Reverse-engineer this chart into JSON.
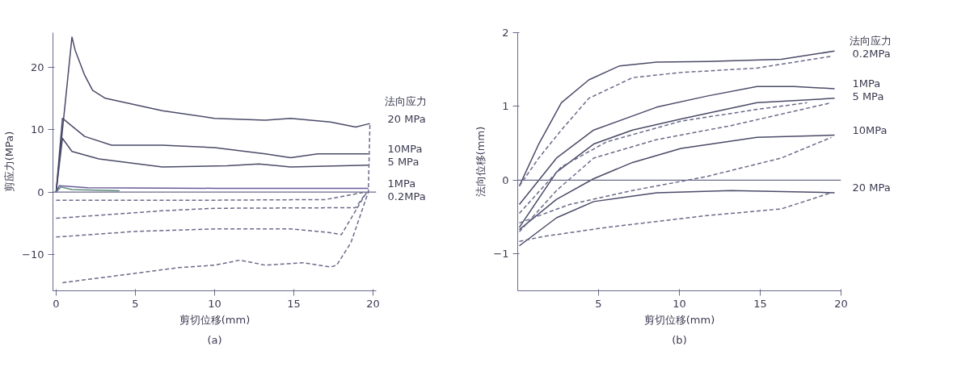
{
  "chart_data": [
    {
      "type": "line",
      "xlabel": "剪切位移(mm)",
      "ylabel": "剪应力(MPa)",
      "legend_title": "法向应力",
      "annotations": [
        "(a)"
      ],
      "legend": false,
      "grid": false,
      "marker": "none",
      "xlim": [
        -0.2,
        20.2
      ],
      "ylim": [
        -15.8,
        25.5
      ],
      "xticks": [
        0,
        5,
        10,
        15,
        20
      ],
      "yticks": [
        -10,
        0,
        10,
        20
      ],
      "ref_lines": [
        {
          "axis": "y",
          "value": 0,
          "color": "#6a6a8a"
        }
      ],
      "series": [
        {
          "name": "20 MPa",
          "color": "#4a4a68",
          "line_style": "solid",
          "x": [
            0,
            1.0,
            1.2,
            1.8,
            2.3,
            3.1,
            6.7,
            10,
            13.2,
            14.8,
            17.3,
            18.9,
            19.7,
            19.8
          ],
          "values": [
            0,
            24.8,
            22.7,
            18.7,
            16.3,
            15.0,
            13.0,
            11.8,
            11.5,
            11.8,
            11.2,
            10.4,
            10.9,
            10.9
          ]
        },
        {
          "name": "10MPa",
          "color": "#4a4a68",
          "line_style": "solid",
          "x": [
            0,
            0.4,
            1.8,
            3.5,
            6.7,
            10,
            13.2,
            14.8,
            16.5,
            19.7
          ],
          "values": [
            0,
            11.8,
            8.9,
            7.5,
            7.5,
            7.1,
            6.1,
            5.5,
            6.1,
            6.1
          ]
        },
        {
          "name": "5 MPa",
          "color": "#4a4a68",
          "line_style": "solid",
          "x": [
            0,
            0.4,
            1.0,
            2.7,
            6.7,
            10.8,
            12.8,
            14.8,
            19.7
          ],
          "values": [
            0,
            8.6,
            6.5,
            5.3,
            4.0,
            4.2,
            4.5,
            4.0,
            4.3
          ]
        },
        {
          "name": "1MPa",
          "color": "#6a5a9a",
          "line_style": "solid",
          "x": [
            0,
            0.2,
            2,
            10,
            19.7
          ],
          "values": [
            0,
            1.0,
            0.7,
            0.6,
            0.6
          ]
        },
        {
          "name": "0.2MPa",
          "color": "#5a8a7a",
          "line_style": "solid",
          "x": [
            0,
            0.3,
            1,
            4
          ],
          "values": [
            0,
            0.8,
            0.4,
            0.2
          ]
        },
        {
          "color": "#6a6a8a",
          "line_style": "dashed",
          "x": [
            0,
            10,
            17,
            19.5
          ],
          "values": [
            -1.3,
            -1.3,
            -1.2,
            0
          ]
        },
        {
          "color": "#6a6a8a",
          "line_style": "dashed",
          "x": [
            0,
            6.7,
            10,
            18.9,
            19.6
          ],
          "values": [
            -4.2,
            -3.0,
            -2.6,
            -2.5,
            0
          ]
        },
        {
          "color": "#6a6a8a",
          "line_style": "dashed",
          "x": [
            0,
            5,
            10,
            14.8,
            17.3,
            18,
            19.6
          ],
          "values": [
            -7.2,
            -6.3,
            -5.9,
            -5.9,
            -6.5,
            -6.8,
            0
          ]
        },
        {
          "color": "#6a6a8a",
          "line_style": "dashed",
          "x": [
            0.4,
            5,
            7.7,
            10,
            11.6,
            13.2,
            15.6,
            17.3,
            17.7,
            18.6,
            19.4,
            19.7,
            19.8
          ],
          "values": [
            -14.5,
            -13,
            -12.1,
            -11.7,
            -10.9,
            -11.7,
            -11.3,
            -12.0,
            -11.7,
            -8.1,
            -2.2,
            0,
            10.9
          ]
        }
      ]
    },
    {
      "type": "line",
      "xlabel": "剪切位移(mm)",
      "ylabel": "法向位移(mm)",
      "legend_title": "法向应力",
      "annotations": [
        "(b)"
      ],
      "legend": false,
      "grid": false,
      "marker": "none",
      "xlim": [
        0,
        20
      ],
      "ylim": [
        -1.5,
        2.0
      ],
      "xticks": [
        5,
        10,
        15,
        20
      ],
      "yticks": [
        -1,
        0,
        1,
        2
      ],
      "ref_lines": [
        {
          "axis": "y",
          "value": 0,
          "color": "#6a6a8a"
        }
      ],
      "series": [
        {
          "name": "0.2MPa",
          "color": "#4a4a68",
          "line_style": "solid",
          "x": [
            0.1,
            1.3,
            2.7,
            4.4,
            6.3,
            8.6,
            11.7,
            16.3,
            19.6
          ],
          "values": [
            -0.08,
            0.49,
            1.05,
            1.36,
            1.55,
            1.6,
            1.61,
            1.64,
            1.75
          ]
        },
        {
          "name": "1MPa",
          "color": "#4a4a68",
          "line_style": "solid",
          "x": [
            0.1,
            2.4,
            4.7,
            8.6,
            11.7,
            14.8,
            17.1,
            19.6
          ],
          "values": [
            -0.33,
            0.3,
            0.68,
            0.99,
            1.14,
            1.27,
            1.27,
            1.24
          ]
        },
        {
          "name": "5 MPa",
          "color": "#4a4a68",
          "line_style": "solid",
          "x": [
            0.1,
            2.4,
            4.7,
            7.1,
            10.1,
            14.8,
            19.6
          ],
          "values": [
            -0.64,
            0.11,
            0.49,
            0.68,
            0.83,
            1.05,
            1.11
          ]
        },
        {
          "name": "10MPa",
          "color": "#4a4a68",
          "line_style": "solid",
          "x": [
            0.1,
            2.4,
            4.7,
            7.1,
            10.1,
            14.8,
            19.6
          ],
          "values": [
            -0.67,
            -0.26,
            0.02,
            0.24,
            0.43,
            0.58,
            0.61
          ]
        },
        {
          "name": "20 MPa",
          "color": "#4a4a68",
          "line_style": "solid",
          "x": [
            0.1,
            2.4,
            4.7,
            8.6,
            13.2,
            19.6
          ],
          "values": [
            -0.89,
            -0.51,
            -0.29,
            -0.17,
            -0.14,
            -0.17
          ]
        },
        {
          "color": "#6a6a8a",
          "line_style": "dashed",
          "x": [
            0.1,
            1.3,
            2.7,
            4.4,
            7.1,
            10.1,
            14.8,
            19.4
          ],
          "values": [
            -0.08,
            0.3,
            0.68,
            1.11,
            1.39,
            1.46,
            1.52,
            1.68
          ]
        },
        {
          "color": "#6a6a8a",
          "line_style": "dashed",
          "x": [
            0.1,
            2.7,
            5.5,
            10.1,
            14.8,
            17.9
          ],
          "values": [
            -0.45,
            0.18,
            0.52,
            0.8,
            0.96,
            1.05
          ]
        },
        {
          "color": "#6a6a8a",
          "line_style": "dashed",
          "x": [
            0.1,
            2.4,
            4.7,
            8.6,
            13.2,
            19.4
          ],
          "values": [
            -0.7,
            -0.14,
            0.3,
            0.55,
            0.74,
            1.05
          ]
        },
        {
          "color": "#6a6a8a",
          "line_style": "dashed",
          "x": [
            0.1,
            3.2,
            7.1,
            11.7,
            16.3,
            19.4
          ],
          "values": [
            -0.58,
            -0.33,
            -0.14,
            0.05,
            0.3,
            0.58
          ]
        },
        {
          "color": "#6a6a8a",
          "line_style": "dashed",
          "x": [
            0.1,
            1.7,
            5.5,
            11.7,
            16.3,
            19.4
          ],
          "values": [
            -0.83,
            -0.76,
            -0.64,
            -0.48,
            -0.39,
            -0.17
          ]
        }
      ]
    }
  ]
}
